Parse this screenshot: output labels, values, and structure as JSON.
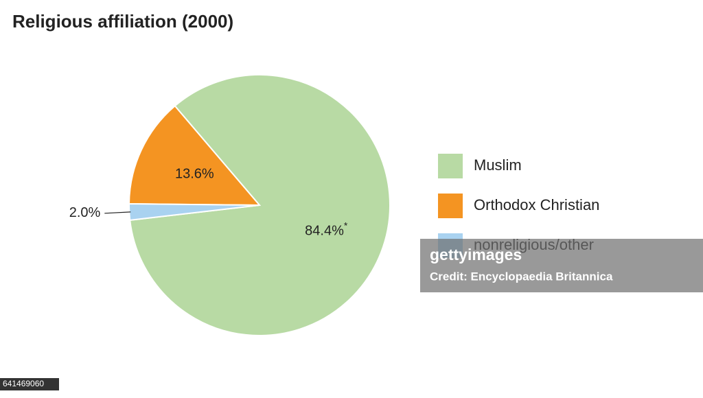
{
  "chart_data": {
    "type": "pie",
    "title": "Religious affiliation (2000)",
    "categories": [
      "Muslim",
      "Orthodox Christian",
      "nonreligious/other"
    ],
    "values": [
      84.4,
      13.6,
      2.0
    ],
    "value_labels": [
      "84.4%",
      "13.6%",
      "2.0%"
    ],
    "colors": [
      "#b8daa4",
      "#f49422",
      "#a9d2f0"
    ],
    "annotation": "*",
    "legend": "right"
  },
  "watermark": {
    "brand": "gettyimages",
    "credit": "Credit: Encyclopaedia Britannica",
    "id": "641469060"
  }
}
